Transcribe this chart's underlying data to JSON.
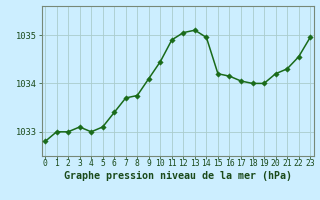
{
  "x": [
    0,
    1,
    2,
    3,
    4,
    5,
    6,
    7,
    8,
    9,
    10,
    11,
    12,
    13,
    14,
    15,
    16,
    17,
    18,
    19,
    20,
    21,
    22,
    23
  ],
  "y": [
    1032.8,
    1033.0,
    1033.0,
    1033.1,
    1033.0,
    1033.1,
    1033.4,
    1033.7,
    1033.75,
    1034.1,
    1034.45,
    1034.9,
    1035.05,
    1035.1,
    1034.95,
    1034.2,
    1034.15,
    1034.05,
    1034.0,
    1034.0,
    1034.2,
    1034.3,
    1034.55,
    1034.95
  ],
  "line_color": "#1a6b1a",
  "marker_color": "#1a6b1a",
  "bg_color": "#cceeff",
  "grid_color": "#aacccc",
  "xlabel": "Graphe pression niveau de la mer (hPa)",
  "ylabel_ticks": [
    1033,
    1034,
    1035
  ],
  "ylim": [
    1032.5,
    1035.6
  ],
  "xlim": [
    -0.3,
    23.3
  ],
  "xticks": [
    0,
    1,
    2,
    3,
    4,
    5,
    6,
    7,
    8,
    9,
    10,
    11,
    12,
    13,
    14,
    15,
    16,
    17,
    18,
    19,
    20,
    21,
    22,
    23
  ],
  "tick_fontsize": 5.8,
  "xlabel_fontsize": 7.2,
  "marker_size": 2.8,
  "line_width": 1.1
}
